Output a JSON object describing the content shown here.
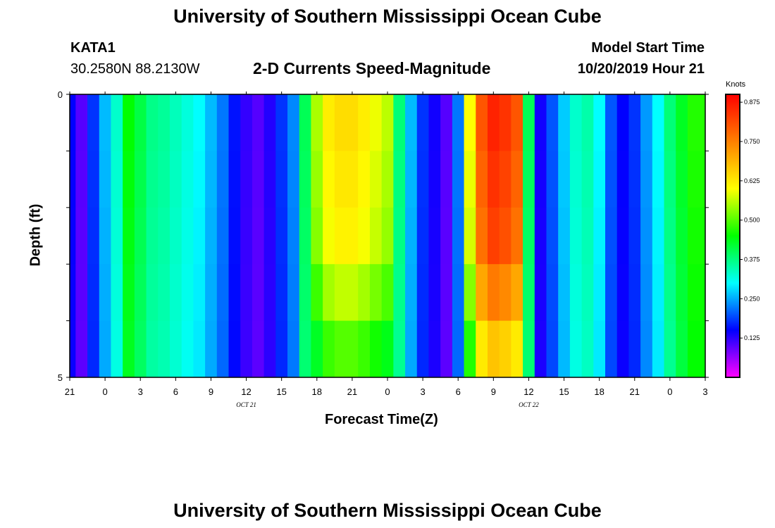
{
  "header": {
    "title": "University of Southern Mississippi Ocean Cube",
    "station": "KATA1",
    "coords": "30.2580N 88.2130W",
    "subtitle": "2-D Currents Speed-Magnitude",
    "model_label": "Model Start Time",
    "model_time": "10/20/2019 Hour 21",
    "footer_title": "University of Southern Mississippi Ocean Cube"
  },
  "colorbar": {
    "unit": "Knots",
    "min": 0,
    "max": 0.9,
    "ticks": [
      "0.875",
      "0.750",
      "0.625",
      "0.500",
      "0.375",
      "0.250",
      "0.125"
    ],
    "tick_values": [
      0.875,
      0.75,
      0.625,
      0.5,
      0.375,
      0.25,
      0.125
    ],
    "stops": [
      "#ff00ff",
      "#8000ff",
      "#0000ff",
      "#0080ff",
      "#00ffff",
      "#00ff80",
      "#00ff00",
      "#80ff00",
      "#ffff00",
      "#ffc000",
      "#ff8000",
      "#ff4000",
      "#ff0000"
    ]
  },
  "chart_data": {
    "type": "heatmap",
    "title": "2-D Currents Speed-Magnitude",
    "xlabel": "Forecast Time(Z)",
    "ylabel": "Depth (ft)",
    "x_tick_labels": [
      "21",
      "0",
      "3",
      "6",
      "9",
      "12",
      "15",
      "18",
      "21",
      "0",
      "3",
      "6",
      "9",
      "12",
      "15",
      "18",
      "21",
      "0",
      "3"
    ],
    "date_labels": [
      {
        "text": "OCT 21",
        "hour": 15
      },
      {
        "text": "OCT 22",
        "hour": 39
      }
    ],
    "x_range_hours": [
      0,
      54
    ],
    "y_ticks": [
      "0",
      "5"
    ],
    "y_range_ft": [
      0,
      5
    ],
    "depth_rows_ft": [
      0,
      1,
      2,
      3,
      4,
      5
    ],
    "hours": [
      0,
      1,
      2,
      3,
      4,
      5,
      6,
      7,
      8,
      9,
      10,
      11,
      12,
      13,
      14,
      15,
      16,
      17,
      18,
      19,
      20,
      21,
      22,
      23,
      24,
      25,
      26,
      27,
      28,
      29,
      30,
      31,
      32,
      33,
      34,
      35,
      36,
      37,
      38,
      39,
      40,
      41,
      42,
      43,
      44,
      45,
      46,
      47,
      48,
      49,
      50,
      51,
      52,
      53,
      54
    ],
    "surface_speed_knots": [
      0.15,
      0.1,
      0.18,
      0.26,
      0.33,
      0.45,
      0.41,
      0.37,
      0.36,
      0.34,
      0.32,
      0.3,
      0.26,
      0.22,
      0.16,
      0.12,
      0.1,
      0.13,
      0.18,
      0.23,
      0.4,
      0.55,
      0.62,
      0.64,
      0.64,
      0.62,
      0.59,
      0.56,
      0.38,
      0.26,
      0.18,
      0.14,
      0.1,
      0.22,
      0.6,
      0.8,
      0.86,
      0.84,
      0.8,
      0.4,
      0.14,
      0.2,
      0.27,
      0.33,
      0.35,
      0.3,
      0.2,
      0.15,
      0.18,
      0.24,
      0.3,
      0.38,
      0.43,
      0.47,
      0.47
    ],
    "depth_factor_early": [
      1.0,
      1.0,
      0.99,
      0.98,
      0.97,
      0.96
    ],
    "depth_factor_peak": [
      1.0,
      1.0,
      0.98,
      0.96,
      0.88,
      0.78
    ]
  }
}
